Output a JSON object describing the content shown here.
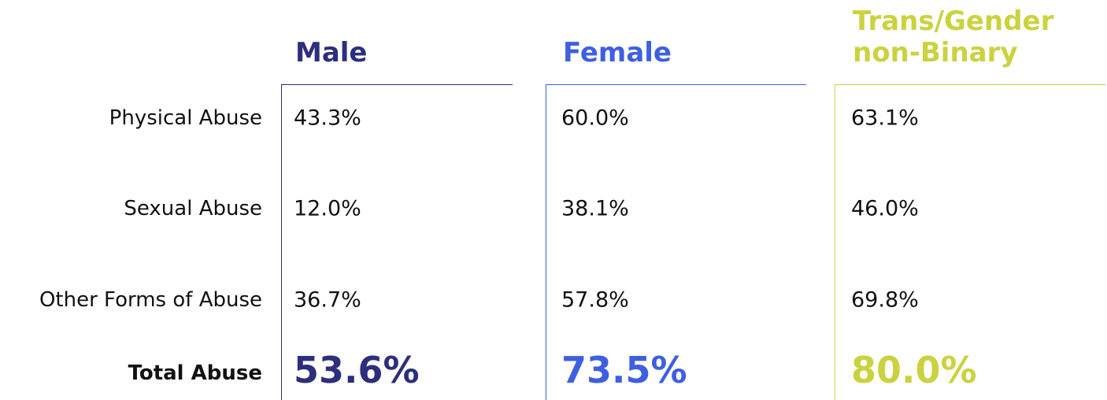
{
  "table": {
    "columns": [
      {
        "name": "Male",
        "color": "#2d2e7c"
      },
      {
        "name": "Female",
        "color": "#3f5fe0"
      },
      {
        "name": "Trans/Gender non-Binary",
        "color": "#cbd23f"
      }
    ],
    "row_labels": [
      "Physical Abuse",
      "Sexual Abuse",
      "Other Forms of Abuse"
    ],
    "rows": [
      [
        "43.3%",
        "60.0%",
        "63.1%"
      ],
      [
        "12.0%",
        "38.1%",
        "46.0%"
      ],
      [
        "36.7%",
        "57.8%",
        "69.8%"
      ]
    ],
    "total_label": "Total Abuse",
    "totals": [
      "53.6%",
      "73.5%",
      "80.0%"
    ]
  }
}
